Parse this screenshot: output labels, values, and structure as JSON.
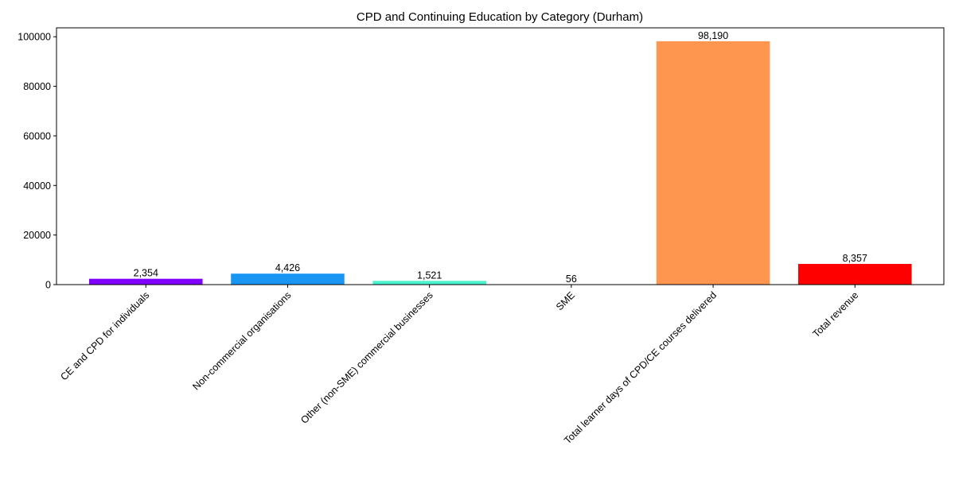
{
  "chart_data": {
    "type": "bar",
    "title": "CPD and Continuing Education by Category (Durham)",
    "xlabel": "",
    "ylabel": "",
    "categories": [
      "CE and CPD for individuals",
      "Non-commercial organisations",
      "Other (non-SME) commercial businesses",
      "SME",
      "Total learner days of CPD/CE courses delivered",
      "Total revenue"
    ],
    "values": [
      2354,
      4426,
      1521,
      56,
      98190,
      8357
    ],
    "value_labels": [
      "2,354",
      "4,426",
      "1,521",
      "56",
      "98,190",
      "8,357"
    ],
    "colors": [
      "#8000ff",
      "#1996f3",
      "#4df3ce",
      "#b2f396",
      "#ff964f",
      "#ff0000"
    ],
    "ylim": [
      0,
      103600
    ],
    "yticks": [
      0,
      20000,
      40000,
      60000,
      80000,
      100000
    ],
    "ytick_labels": [
      "0",
      "20000",
      "40000",
      "60000",
      "80000",
      "100000"
    ],
    "grid": false,
    "legend": "none"
  }
}
